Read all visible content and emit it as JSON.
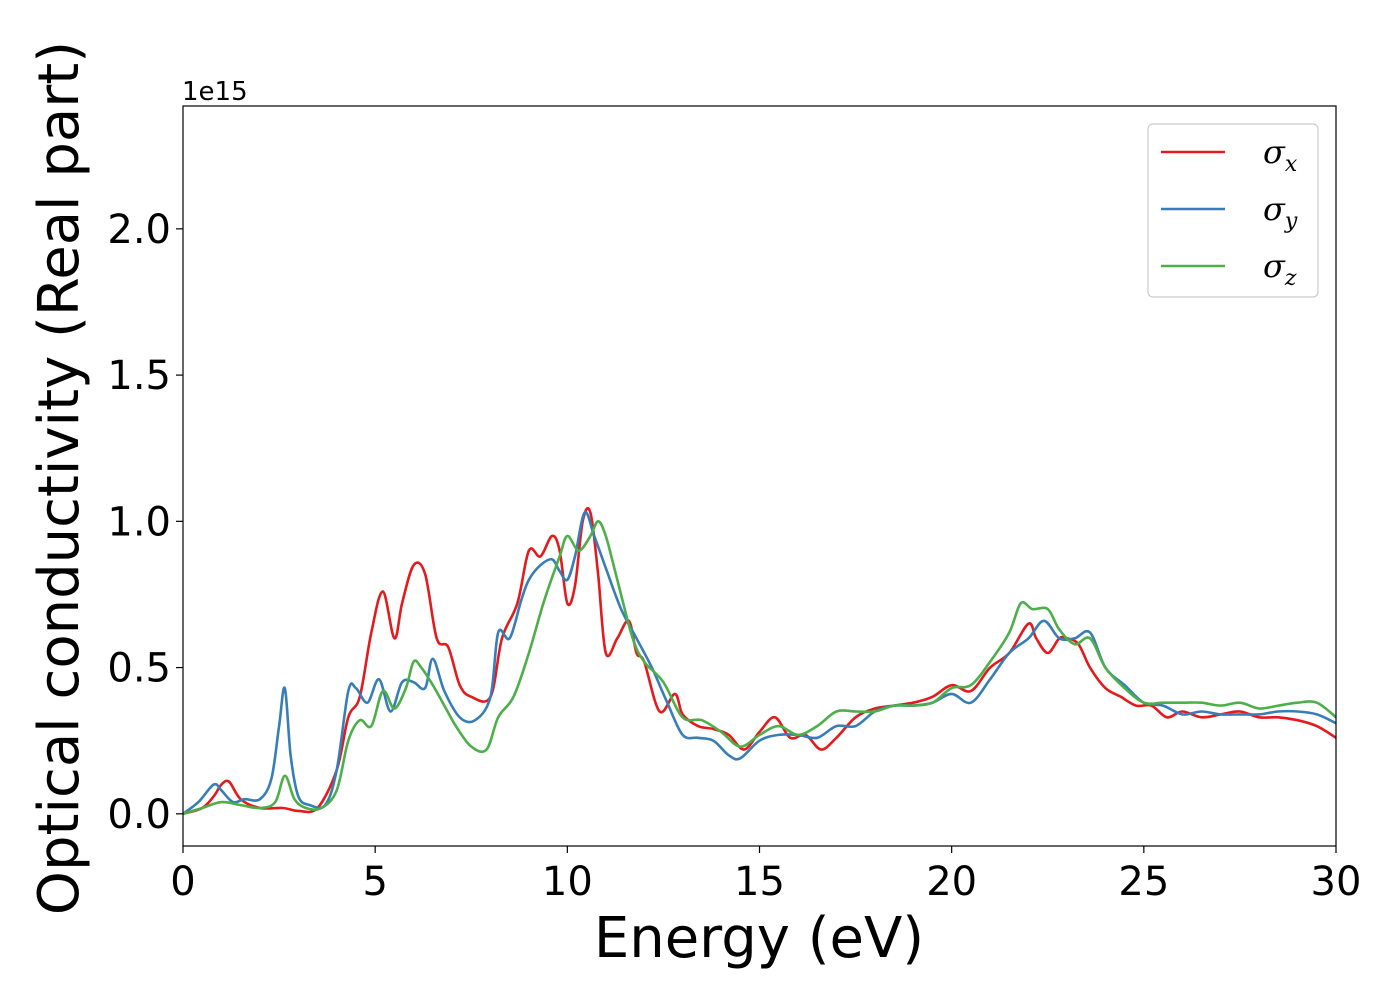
{
  "chart_data": {
    "type": "line",
    "xlabel": "Energy (eV)",
    "ylabel": "Optical conductivity (Real part)",
    "y_offset_label": "1e15",
    "xlim": [
      0,
      30
    ],
    "ylim": [
      -0.11,
      2.42
    ],
    "x_ticks": [
      0,
      5,
      10,
      15,
      20,
      25,
      30
    ],
    "x_tick_labels": [
      "0",
      "5",
      "10",
      "15",
      "20",
      "25",
      "30"
    ],
    "y_ticks": [
      0.0,
      0.5,
      1.0,
      1.5,
      2.0
    ],
    "y_tick_labels": [
      "0.0",
      "0.5",
      "1.0",
      "1.5",
      "2.0"
    ],
    "grid": false,
    "legend_position": "top-right",
    "series": [
      {
        "name": "σx",
        "symbol": "σ",
        "subscript": "x",
        "color": "#e41a1c",
        "x": [
          0,
          0.5,
          0.8,
          1.0,
          1.2,
          1.5,
          2.0,
          2.6,
          3.0,
          3.5,
          4.0,
          4.3,
          4.6,
          4.9,
          5.2,
          5.5,
          5.7,
          6.0,
          6.3,
          6.6,
          6.9,
          7.2,
          7.5,
          8.0,
          8.3,
          8.7,
          9.0,
          9.3,
          9.6,
          9.8,
          10.0,
          10.2,
          10.4,
          10.6,
          10.8,
          11.0,
          11.3,
          11.6,
          11.8,
          12.0,
          12.4,
          12.8,
          13.0,
          13.4,
          13.8,
          14.2,
          14.6,
          15.0,
          15.4,
          15.8,
          16.2,
          16.6,
          17.0,
          17.5,
          18.0,
          18.5,
          19.0,
          19.5,
          20.0,
          20.5,
          21.0,
          21.5,
          22.0,
          22.2,
          22.5,
          22.8,
          23.0,
          23.3,
          23.6,
          24.0,
          24.4,
          24.8,
          25.2,
          25.6,
          26.0,
          26.5,
          27.0,
          27.5,
          28.0,
          28.5,
          29.0,
          29.5,
          30.0
        ],
        "y": [
          0.0,
          0.02,
          0.06,
          0.1,
          0.11,
          0.05,
          0.02,
          0.02,
          0.01,
          0.02,
          0.15,
          0.33,
          0.4,
          0.62,
          0.76,
          0.6,
          0.72,
          0.85,
          0.82,
          0.6,
          0.57,
          0.44,
          0.4,
          0.4,
          0.6,
          0.72,
          0.9,
          0.88,
          0.95,
          0.9,
          0.72,
          0.78,
          1.0,
          1.03,
          0.82,
          0.55,
          0.6,
          0.66,
          0.55,
          0.52,
          0.35,
          0.41,
          0.34,
          0.3,
          0.29,
          0.27,
          0.22,
          0.28,
          0.33,
          0.26,
          0.27,
          0.22,
          0.26,
          0.33,
          0.36,
          0.37,
          0.38,
          0.4,
          0.44,
          0.42,
          0.5,
          0.55,
          0.65,
          0.6,
          0.55,
          0.6,
          0.6,
          0.58,
          0.5,
          0.43,
          0.4,
          0.37,
          0.37,
          0.33,
          0.35,
          0.33,
          0.34,
          0.35,
          0.33,
          0.33,
          0.32,
          0.3,
          0.26
        ]
      },
      {
        "name": "σy",
        "symbol": "σ",
        "subscript": "y",
        "color": "#377eb8",
        "x": [
          0,
          0.4,
          0.8,
          1.0,
          1.3,
          1.6,
          2.0,
          2.3,
          2.5,
          2.65,
          2.8,
          3.0,
          3.3,
          3.7,
          4.0,
          4.3,
          4.5,
          4.8,
          5.1,
          5.4,
          5.7,
          6.0,
          6.3,
          6.5,
          6.8,
          7.2,
          7.6,
          8.0,
          8.2,
          8.5,
          8.8,
          9.0,
          9.3,
          9.6,
          9.8,
          10.0,
          10.2,
          10.45,
          10.7,
          11.0,
          11.4,
          11.8,
          12.2,
          12.6,
          13.0,
          13.4,
          13.8,
          14.2,
          14.5,
          15.0,
          15.5,
          16.0,
          16.5,
          17.0,
          17.5,
          18.0,
          18.5,
          19.0,
          19.5,
          20.0,
          20.5,
          21.0,
          21.5,
          22.0,
          22.4,
          22.8,
          23.2,
          23.6,
          24.0,
          24.5,
          25.0,
          25.5,
          26.0,
          26.5,
          27.0,
          27.5,
          28.0,
          28.5,
          29.0,
          29.5,
          30.0
        ],
        "y": [
          0.0,
          0.04,
          0.1,
          0.08,
          0.04,
          0.05,
          0.05,
          0.12,
          0.3,
          0.43,
          0.2,
          0.06,
          0.03,
          0.03,
          0.15,
          0.42,
          0.43,
          0.38,
          0.46,
          0.35,
          0.45,
          0.45,
          0.43,
          0.53,
          0.42,
          0.33,
          0.32,
          0.4,
          0.62,
          0.6,
          0.73,
          0.8,
          0.85,
          0.87,
          0.83,
          0.8,
          0.88,
          1.03,
          0.95,
          0.84,
          0.7,
          0.6,
          0.5,
          0.38,
          0.27,
          0.26,
          0.25,
          0.2,
          0.19,
          0.25,
          0.27,
          0.27,
          0.26,
          0.3,
          0.3,
          0.35,
          0.37,
          0.37,
          0.38,
          0.41,
          0.38,
          0.46,
          0.55,
          0.6,
          0.66,
          0.6,
          0.6,
          0.62,
          0.5,
          0.44,
          0.38,
          0.37,
          0.34,
          0.35,
          0.34,
          0.34,
          0.34,
          0.35,
          0.35,
          0.34,
          0.31
        ]
      },
      {
        "name": "σz",
        "symbol": "σ",
        "subscript": "z",
        "color": "#4daf4a",
        "x": [
          0,
          0.5,
          1.0,
          1.5,
          2.0,
          2.4,
          2.65,
          2.9,
          3.2,
          3.6,
          4.0,
          4.3,
          4.6,
          4.9,
          5.2,
          5.5,
          5.8,
          6.0,
          6.2,
          6.5,
          6.8,
          7.1,
          7.5,
          7.9,
          8.2,
          8.6,
          9.0,
          9.4,
          9.8,
          10.0,
          10.3,
          10.6,
          10.8,
          11.0,
          11.3,
          11.7,
          12.0,
          12.5,
          13.0,
          13.5,
          14.0,
          14.5,
          15.0,
          15.5,
          16.0,
          16.5,
          17.0,
          17.5,
          18.0,
          18.5,
          19.0,
          19.5,
          20.0,
          20.5,
          21.0,
          21.5,
          21.8,
          22.1,
          22.5,
          22.8,
          23.2,
          23.6,
          24.0,
          24.5,
          25.0,
          25.5,
          26.0,
          26.5,
          27.0,
          27.5,
          28.0,
          28.5,
          29.0,
          29.5,
          30.0
        ],
        "y": [
          0.0,
          0.02,
          0.04,
          0.03,
          0.02,
          0.04,
          0.13,
          0.05,
          0.02,
          0.02,
          0.08,
          0.25,
          0.32,
          0.3,
          0.42,
          0.36,
          0.43,
          0.52,
          0.5,
          0.44,
          0.37,
          0.3,
          0.23,
          0.22,
          0.33,
          0.4,
          0.55,
          0.73,
          0.88,
          0.95,
          0.9,
          0.95,
          1.0,
          0.95,
          0.8,
          0.6,
          0.52,
          0.45,
          0.33,
          0.32,
          0.28,
          0.23,
          0.27,
          0.3,
          0.27,
          0.3,
          0.35,
          0.35,
          0.35,
          0.37,
          0.37,
          0.38,
          0.43,
          0.44,
          0.52,
          0.62,
          0.72,
          0.7,
          0.7,
          0.63,
          0.58,
          0.6,
          0.5,
          0.43,
          0.38,
          0.38,
          0.38,
          0.38,
          0.37,
          0.38,
          0.36,
          0.37,
          0.38,
          0.38,
          0.33
        ]
      }
    ]
  }
}
